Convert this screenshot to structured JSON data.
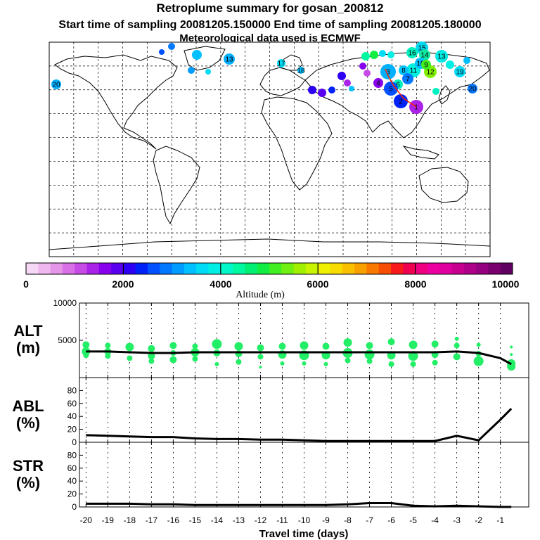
{
  "header": {
    "title": "Retroplume summary for gosan_200812",
    "subtitle": "Start time of sampling 20081205.150000     End time of sampling 20081205.180000",
    "met": "Meteorological data used is ECMWF"
  },
  "colors": {
    "plume": "#22ee66",
    "line": "#000000",
    "colorbar": [
      "#f6d8f6",
      "#efb8ef",
      "#e596e8",
      "#da70e6",
      "#c64ae6",
      "#aa22e8",
      "#8800ee",
      "#5a00f0",
      "#2e00f4",
      "#0022f8",
      "#0050ff",
      "#0078ff",
      "#009cff",
      "#00c0ff",
      "#00dcf6",
      "#00f0e6",
      "#00f8c8",
      "#00f8a0",
      "#00f074",
      "#10ee44",
      "#40f020",
      "#70f010",
      "#a0f000",
      "#c8f400",
      "#eef000",
      "#f8dc00",
      "#f8c000",
      "#f8a000",
      "#f87800",
      "#f84e00",
      "#f81a1a",
      "#f00050",
      "#ee0080",
      "#ec00a0",
      "#e000a0",
      "#c80090",
      "#ae0088",
      "#940080",
      "#7a0070",
      "#600060"
    ]
  },
  "map": {
    "markers": [
      {
        "label": "15"
      },
      {
        "label": "16"
      },
      {
        "label": "14"
      },
      {
        "label": "13"
      },
      {
        "label": "12"
      },
      {
        "label": "11"
      },
      {
        "label": "10"
      },
      {
        "label": "9"
      },
      {
        "label": "8"
      },
      {
        "label": "7"
      },
      {
        "label": "6"
      },
      {
        "label": "5"
      },
      {
        "label": "4"
      },
      {
        "label": "3"
      },
      {
        "label": "2"
      },
      {
        "label": "1"
      },
      {
        "label": "17"
      },
      {
        "label": "18"
      },
      {
        "label": "19"
      },
      {
        "label": "20"
      },
      {
        "label": "13"
      },
      {
        "label": "20"
      }
    ]
  },
  "colorbar": {
    "tick_labels": [
      "0",
      "2000",
      "4000",
      "6000",
      "8000",
      "10000"
    ],
    "label": "Altitude (m)"
  },
  "chart_data": [
    {
      "type": "scatter",
      "name": "ALT",
      "ylabel": "ALT\n(m)",
      "ylabel_line1": "ALT",
      "ylabel_line2": "(m)",
      "ylim": [
        0,
        10000
      ],
      "yticks": [
        5000,
        10000
      ],
      "xlim": [
        -20.3,
        0.3
      ],
      "median_line": {
        "x": [
          -20,
          -19,
          -18,
          -17,
          -16,
          -15,
          -14,
          -13,
          -12,
          -11,
          -10,
          -9,
          -8,
          -7,
          -6,
          -5,
          -4,
          -3,
          -2,
          -1,
          -0.5
        ],
        "y": [
          3500,
          3500,
          3400,
          3300,
          3300,
          3400,
          3400,
          3400,
          3400,
          3400,
          3400,
          3400,
          3400,
          3400,
          3400,
          3400,
          3400,
          3500,
          3300,
          2600,
          1800
        ]
      },
      "blobs": [
        {
          "x": -20,
          "y": 4400,
          "s": 5
        },
        {
          "x": -20,
          "y": 3500,
          "s": 6
        },
        {
          "x": -20,
          "y": 3000,
          "s": 4
        },
        {
          "x": -19,
          "y": 4300,
          "s": 4
        },
        {
          "x": -19,
          "y": 3500,
          "s": 5
        },
        {
          "x": -19,
          "y": 2900,
          "s": 4
        },
        {
          "x": -18,
          "y": 4100,
          "s": 6
        },
        {
          "x": -18,
          "y": 2600,
          "s": 4
        },
        {
          "x": -17,
          "y": 3900,
          "s": 5
        },
        {
          "x": -17,
          "y": 2900,
          "s": 5
        },
        {
          "x": -17,
          "y": 2200,
          "s": 4
        },
        {
          "x": -16,
          "y": 4300,
          "s": 5
        },
        {
          "x": -16,
          "y": 3300,
          "s": 4
        },
        {
          "x": -16,
          "y": 2400,
          "s": 5
        },
        {
          "x": -15,
          "y": 4200,
          "s": 4
        },
        {
          "x": -15,
          "y": 3400,
          "s": 6
        },
        {
          "x": -15,
          "y": 2500,
          "s": 4
        },
        {
          "x": -14,
          "y": 4500,
          "s": 7
        },
        {
          "x": -14,
          "y": 3300,
          "s": 5
        },
        {
          "x": -14,
          "y": 1800,
          "s": 3
        },
        {
          "x": -13,
          "y": 4200,
          "s": 6
        },
        {
          "x": -13,
          "y": 3200,
          "s": 5
        },
        {
          "x": -13,
          "y": 2100,
          "s": 4
        },
        {
          "x": -12,
          "y": 4000,
          "s": 5
        },
        {
          "x": -12,
          "y": 2800,
          "s": 4
        },
        {
          "x": -12,
          "y": 1400,
          "s": 2
        },
        {
          "x": -11,
          "y": 4200,
          "s": 5
        },
        {
          "x": -11,
          "y": 3100,
          "s": 6
        },
        {
          "x": -11,
          "y": 1900,
          "s": 3
        },
        {
          "x": -10,
          "y": 4300,
          "s": 6
        },
        {
          "x": -10,
          "y": 3000,
          "s": 7
        },
        {
          "x": -10,
          "y": 1900,
          "s": 3
        },
        {
          "x": -9,
          "y": 4200,
          "s": 5
        },
        {
          "x": -9,
          "y": 3000,
          "s": 6
        },
        {
          "x": -9,
          "y": 1800,
          "s": 3
        },
        {
          "x": -8,
          "y": 4700,
          "s": 6
        },
        {
          "x": -8,
          "y": 3300,
          "s": 7
        },
        {
          "x": -8,
          "y": 2300,
          "s": 4
        },
        {
          "x": -7,
          "y": 4300,
          "s": 5
        },
        {
          "x": -7,
          "y": 3100,
          "s": 7
        },
        {
          "x": -7,
          "y": 2200,
          "s": 4
        },
        {
          "x": -6,
          "y": 4800,
          "s": 5
        },
        {
          "x": -6,
          "y": 3000,
          "s": 6
        },
        {
          "x": -6,
          "y": 1800,
          "s": 4
        },
        {
          "x": -5,
          "y": 4400,
          "s": 6
        },
        {
          "x": -5,
          "y": 2900,
          "s": 7
        },
        {
          "x": -5,
          "y": 1800,
          "s": 4
        },
        {
          "x": -4,
          "y": 4500,
          "s": 5
        },
        {
          "x": -4,
          "y": 3100,
          "s": 5
        },
        {
          "x": -4,
          "y": 2000,
          "s": 4
        },
        {
          "x": -3,
          "y": 5200,
          "s": 3
        },
        {
          "x": -3,
          "y": 4300,
          "s": 4
        },
        {
          "x": -3,
          "y": 2800,
          "s": 5
        },
        {
          "x": -2,
          "y": 4400,
          "s": 3
        },
        {
          "x": -2,
          "y": 3200,
          "s": 4
        },
        {
          "x": -2,
          "y": 2200,
          "s": 7
        },
        {
          "x": -0.5,
          "y": 4100,
          "s": 2
        },
        {
          "x": -0.5,
          "y": 3100,
          "s": 2
        },
        {
          "x": -0.5,
          "y": 1900,
          "s": 6
        },
        {
          "x": -0.5,
          "y": 1500,
          "s": 6
        }
      ]
    },
    {
      "type": "line",
      "name": "ABL",
      "ylabel_line1": "ABL",
      "ylabel_line2": "(%)",
      "ylim": [
        0,
        100
      ],
      "yticks": [
        0,
        20,
        40,
        60,
        80
      ],
      "xlim": [
        -20.3,
        0.3
      ],
      "x": [
        -20,
        -19,
        -18,
        -17,
        -16,
        -15,
        -14,
        -13,
        -12,
        -11,
        -10,
        -9,
        -8,
        -7,
        -6,
        -5,
        -4,
        -3,
        -2,
        -1,
        -0.5
      ],
      "y": [
        11,
        10,
        9,
        8,
        8,
        6,
        5,
        5,
        4,
        4,
        3,
        2,
        2,
        2,
        2,
        2,
        2,
        10,
        3,
        35,
        52
      ]
    },
    {
      "type": "line",
      "name": "STR",
      "ylabel_line1": "STR",
      "ylabel_line2": "(%)",
      "ylim": [
        0,
        100
      ],
      "yticks": [
        0,
        20,
        40,
        60,
        80
      ],
      "xlim": [
        -20.3,
        0.3
      ],
      "xticks": [
        -20,
        -19,
        -18,
        -17,
        -16,
        -15,
        -14,
        -13,
        -12,
        -11,
        -10,
        -9,
        -8,
        -7,
        -6,
        -5,
        -4,
        -3,
        -2,
        -1
      ],
      "xtick_labels": [
        "-20",
        "-19",
        "-18",
        "-17",
        "-16",
        "-15",
        "-14",
        "-13",
        "-12",
        "-11",
        "-10",
        "-9",
        "-8",
        "-7",
        "-6",
        "-5",
        "-4",
        "-3",
        "-2",
        "-1"
      ],
      "xlabel": "Travel time (days)",
      "x": [
        -20,
        -19,
        -18,
        -17,
        -16,
        -15,
        -14,
        -13,
        -12,
        -11,
        -10,
        -9,
        -8,
        -7,
        -6,
        -5,
        -4,
        -3,
        -2,
        -1,
        -0.5
      ],
      "y": [
        5,
        5,
        5,
        4,
        4,
        3,
        3,
        3,
        3,
        3,
        3,
        3,
        4,
        6,
        6,
        2,
        1,
        2,
        1,
        0,
        0
      ]
    }
  ]
}
